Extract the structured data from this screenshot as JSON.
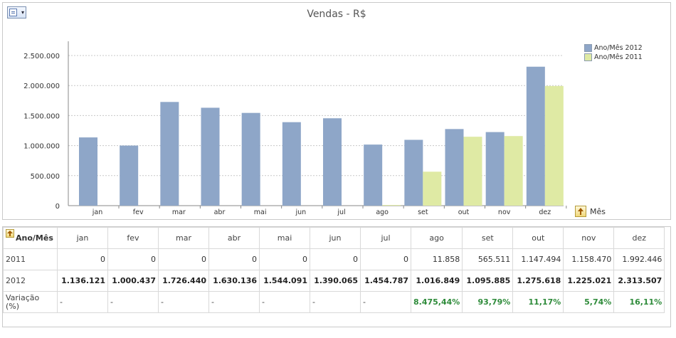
{
  "chart_data": {
    "type": "bar",
    "title": "Vendas - R$",
    "categories": [
      "jan",
      "fev",
      "mar",
      "abr",
      "mai",
      "jun",
      "jul",
      "ago",
      "set",
      "out",
      "nov",
      "dez"
    ],
    "series": [
      {
        "name": "Ano/Mês 2012",
        "color": "#8ea6c8",
        "values": [
          1136121,
          1000437,
          1726440,
          1630136,
          1544091,
          1390065,
          1454787,
          1016849,
          1095885,
          1275618,
          1225021,
          2313507
        ]
      },
      {
        "name": "Ano/Mês 2011",
        "color": "#dfeaa4",
        "values": [
          0,
          0,
          0,
          0,
          0,
          0,
          0,
          11858,
          565511,
          1147494,
          1158470,
          1992446
        ]
      }
    ],
    "ylim": [
      0,
      2500000
    ],
    "yticks": [
      {
        "v": 0,
        "label": "0"
      },
      {
        "v": 500000,
        "label": "500.000"
      },
      {
        "v": 1000000,
        "label": "1.000.000"
      },
      {
        "v": 1500000,
        "label": "1.500.000"
      },
      {
        "v": 2000000,
        "label": "2.000.000"
      },
      {
        "v": 2500000,
        "label": "2.500.000"
      }
    ],
    "grid": true,
    "legend_position": "top-right",
    "xlabel": "Mês"
  },
  "table": {
    "corner_label": "Ano/Mês",
    "columns": [
      "jan",
      "fev",
      "mar",
      "abr",
      "mai",
      "jun",
      "jul",
      "ago",
      "set",
      "out",
      "nov",
      "dez"
    ],
    "rows": [
      {
        "label": "2011",
        "values": [
          "0",
          "0",
          "0",
          "0",
          "0",
          "0",
          "0",
          "11.858",
          "565.511",
          "1.147.494",
          "1.158.470",
          "1.992.446"
        ]
      },
      {
        "label": "2012",
        "values": [
          "1.136.121",
          "1.000.437",
          "1.726.440",
          "1.630.136",
          "1.544.091",
          "1.390.065",
          "1.454.787",
          "1.016.849",
          "1.095.885",
          "1.275.618",
          "1.225.021",
          "2.313.507"
        ]
      },
      {
        "label": "Variação (%)",
        "values": [
          "-",
          "-",
          "-",
          "-",
          "-",
          "-",
          "-",
          "8.475,44%",
          "93,79%",
          "11,17%",
          "5,74%",
          "16,11%"
        ]
      }
    ]
  }
}
